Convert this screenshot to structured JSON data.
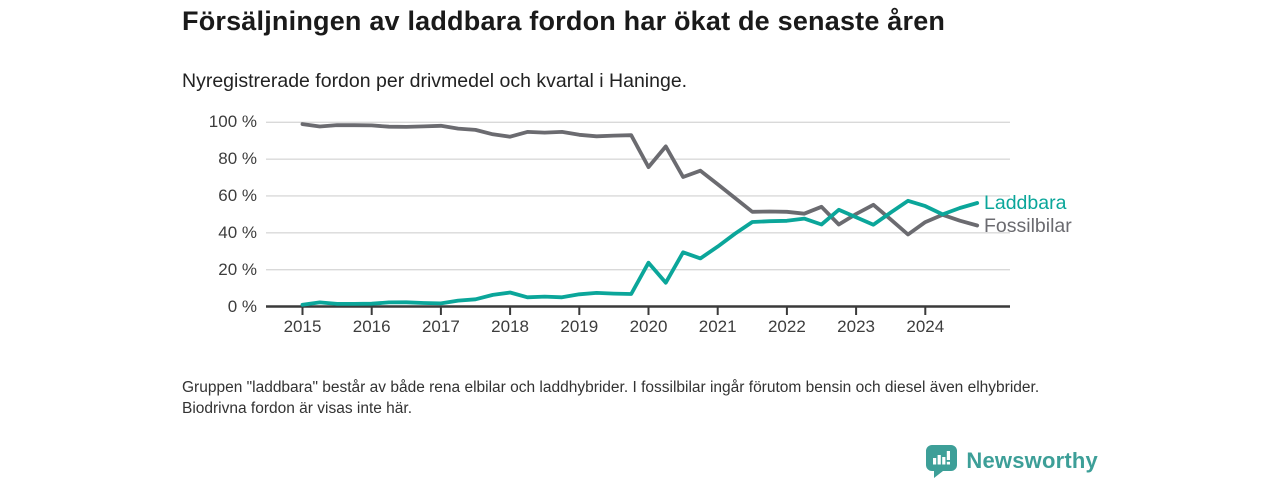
{
  "header": {
    "title": "Försäljningen av laddbara fordon har ökat de senaste åren",
    "subtitle": "Nyregistrerade fordon per drivmedel och kvartal i Haninge."
  },
  "footnote": "Gruppen \"laddbara\" består av både rena elbilar och laddhybrider. I fossilbilar ingår förutom bensin och diesel även elhybrider. Biodrivna fordon är visas inte här.",
  "branding": {
    "name": "Newsworthy",
    "logo_icon": "bar-chart-speech-bubble",
    "color": "#3d9f98"
  },
  "chart_data": {
    "type": "line",
    "title": "Nyregistrerade fordon per drivmedel och kvartal i Haninge",
    "x_unit": "quarter",
    "x_range": [
      "2015 Q1",
      "2024 Q4"
    ],
    "x_tick_labels": [
      "2015",
      "2016",
      "2017",
      "2018",
      "2019",
      "2020",
      "2021",
      "2022",
      "2023",
      "2024"
    ],
    "y_tick_labels": [
      "0 %",
      "20 %",
      "40 %",
      "60 %",
      "80 %",
      "100 %"
    ],
    "ylim": [
      0,
      100
    ],
    "grid": "horizontal",
    "legend_position": "right-of-line-end",
    "axis_color": "#3a3a3a",
    "grid_color": "#d9d9d9",
    "series": [
      {
        "name": "Fossilbilar",
        "color": "#6b6b70",
        "values": [
          99.0,
          97.7,
          98.5,
          98.4,
          98.3,
          97.6,
          97.5,
          97.8,
          98.1,
          96.6,
          95.9,
          93.5,
          92.2,
          94.8,
          94.4,
          94.8,
          93.2,
          92.4,
          92.8,
          93.0,
          75.7,
          86.9,
          70.3,
          73.7,
          66.4,
          58.9,
          51.4,
          51.6,
          51.4,
          50.4,
          54.1,
          44.5,
          50.2,
          55.2,
          47.3,
          39.1,
          45.8,
          49.8,
          46.6,
          44.0
        ]
      },
      {
        "name": "Laddbara",
        "color": "#0ba69a",
        "values": [
          0.9,
          2.2,
          1.4,
          1.4,
          1.5,
          2.2,
          2.3,
          1.9,
          1.7,
          3.2,
          3.9,
          6.3,
          7.6,
          5.0,
          5.4,
          5.0,
          6.6,
          7.4,
          7.0,
          6.8,
          23.8,
          12.9,
          29.4,
          26.1,
          32.5,
          39.5,
          45.9,
          46.3,
          46.5,
          47.7,
          44.5,
          52.5,
          48.4,
          44.4,
          51.0,
          57.4,
          54.5,
          50.0,
          53.5,
          56.2
        ]
      }
    ]
  }
}
